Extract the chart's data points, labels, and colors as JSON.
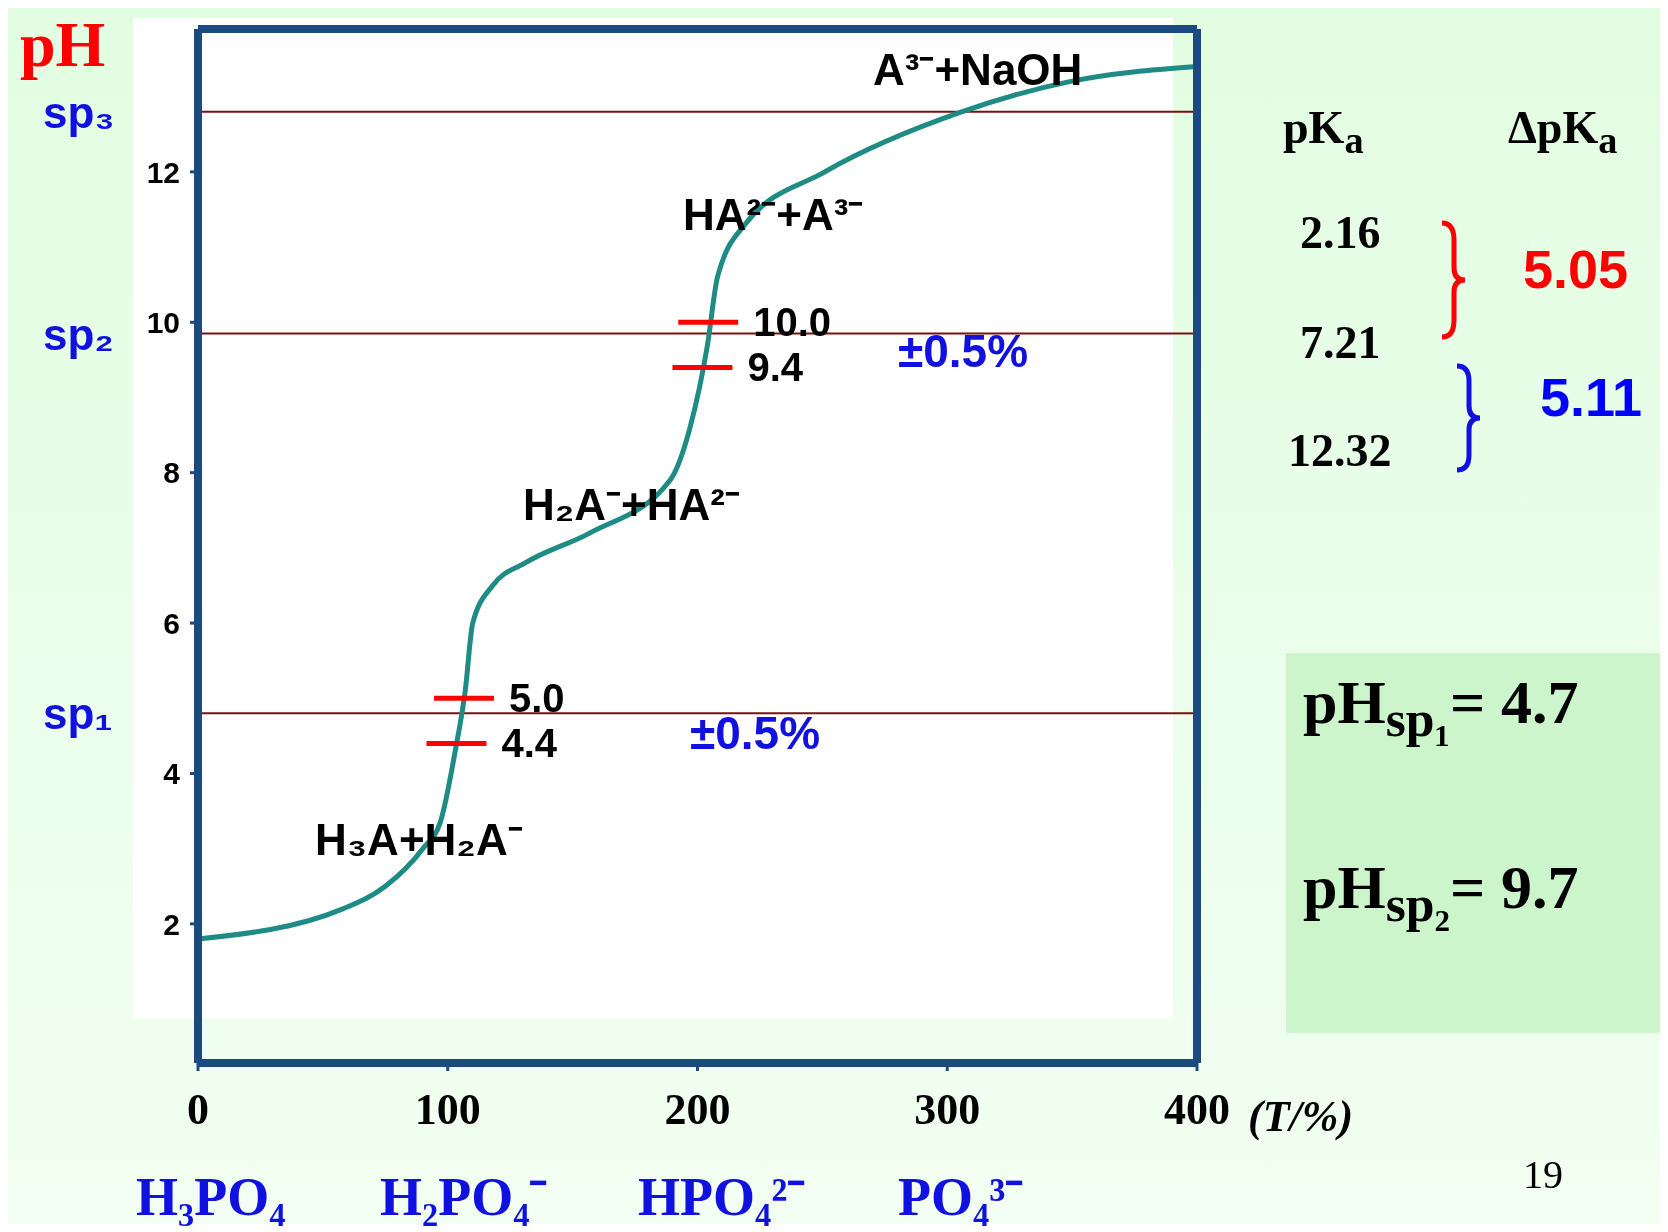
{
  "chart_data": {
    "type": "line",
    "ylabel": "pH",
    "xlabel": "(T/%)",
    "x": [
      0,
      58,
      75,
      90,
      97,
      103,
      107,
      110,
      118,
      131,
      157,
      189,
      197,
      204,
      208,
      219,
      251,
      306,
      349,
      400
    ],
    "series": [
      {
        "color": "#1e8c84",
        "values": [
          1.8,
          2.2,
          2.5,
          3.0,
          3.35,
          4.3,
          5.1,
          6.0,
          6.5,
          6.8,
          7.2,
          7.9,
          8.6,
          9.7,
          10.6,
          11.3,
          12.0,
          12.8,
          13.2,
          13.4
        ]
      }
    ],
    "xlim": [
      0,
      400
    ],
    "xticks": [
      0,
      100,
      200,
      300,
      400
    ],
    "ylim": [
      0.15,
      13.9
    ],
    "yticks": [
      2,
      4,
      6,
      8,
      10,
      12
    ],
    "ref_lines": [
      {
        "axis": "y",
        "value": 12.8,
        "label": "sp₃",
        "color": "#7a1010"
      },
      {
        "axis": "y",
        "value": 9.85,
        "label": "sp₂",
        "color": "#7a1010"
      },
      {
        "axis": "y",
        "value": 4.8,
        "label": "sp₁",
        "color": "#7a1010"
      }
    ],
    "annotations": [
      "pK$_{a}$",
      "ΔpK$_{a}$",
      "2.16",
      "7.21",
      "12.32",
      "5.05",
      "5.11",
      "pH$_{sp₁}$= 4.7",
      "pH$_{sp₂}$= 9.7",
      "H₃PO₄",
      "H₂PO₄⁻",
      "HPO₄²⁻",
      "PO₄³⁻",
      "19",
      "H₃A+H₂A⁻",
      "H₂A⁻+HA²⁻",
      "HA²⁻+A³⁻",
      "A³⁻+NaOH",
      "±0.5%",
      "±0.5%",
      {
        "text": "10.0",
        "x": 204.3,
        "y": 10.0
      },
      {
        "text": "9.4",
        "x": 202,
        "y": 9.4
      },
      {
        "text": "5.0",
        "x": 106.5,
        "y": 5.0
      },
      {
        "text": "4.4",
        "x": 103.5,
        "y": 4.4
      }
    ],
    "grid": false,
    "legend": false,
    "marker": "none",
    "line_style": "solid"
  }
}
